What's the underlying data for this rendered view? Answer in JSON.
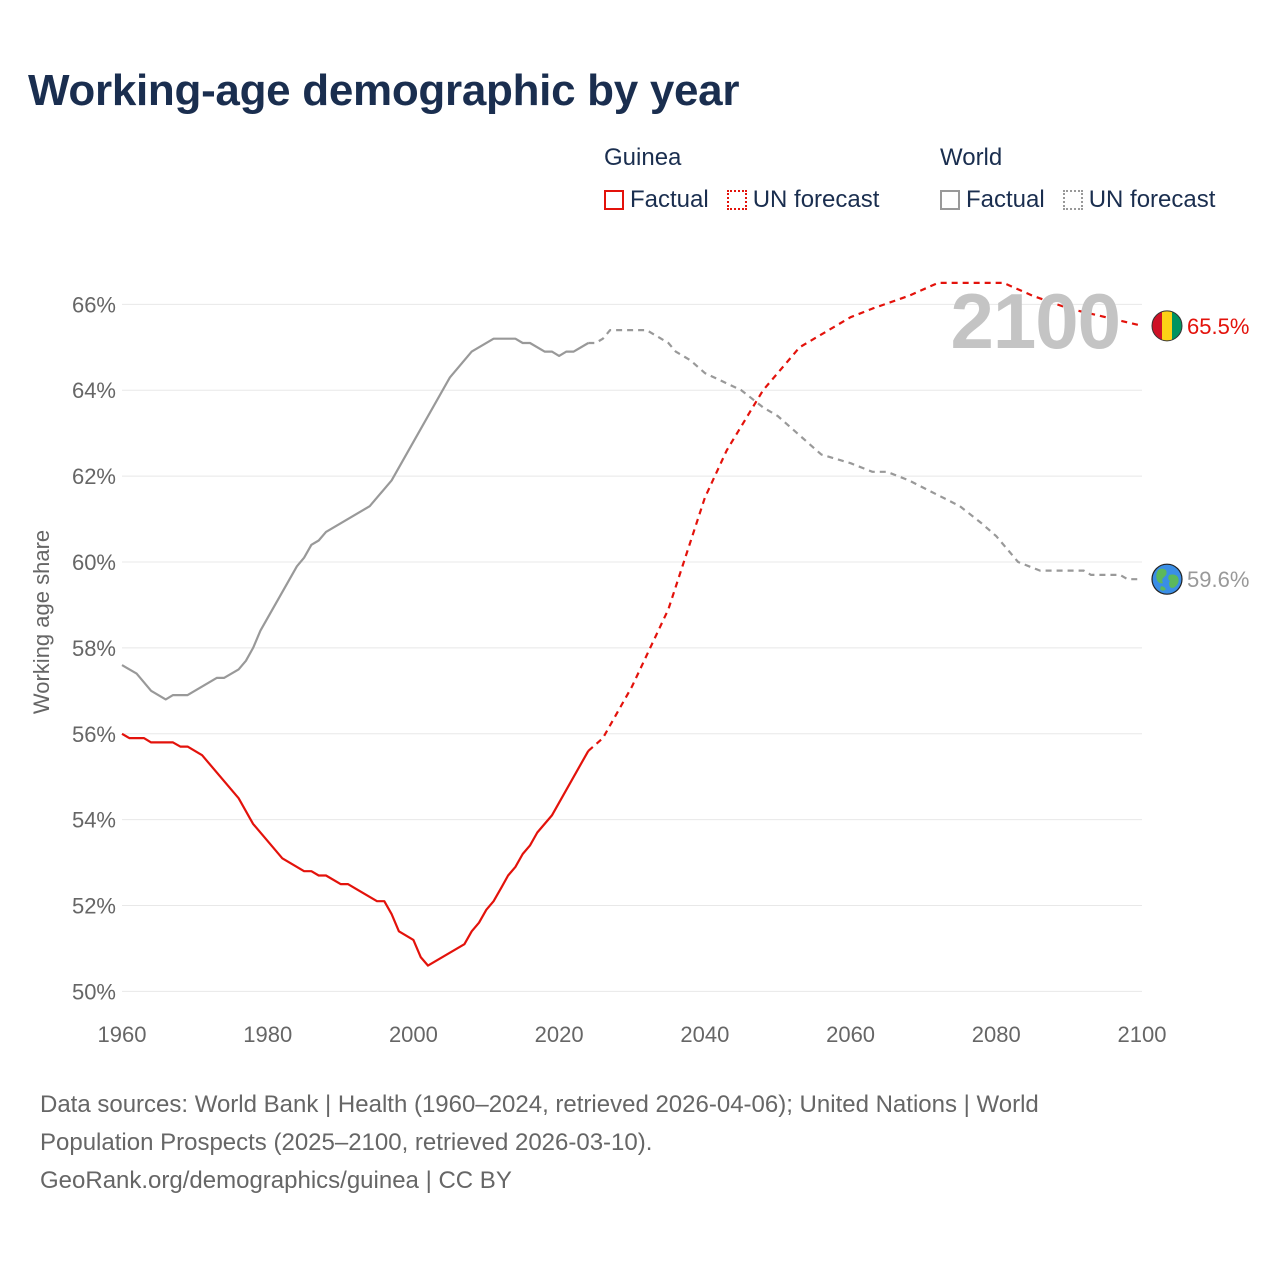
{
  "title": "Working-age demographic by year",
  "legend": {
    "groups": [
      {
        "name": "Guinea",
        "factual_label": "Factual",
        "forecast_label": "UN forecast"
      },
      {
        "name": "World",
        "factual_label": "Factual",
        "forecast_label": "UN forecast"
      }
    ]
  },
  "current_year_label": "2100",
  "footer": {
    "line1": "Data sources: World Bank | Health (1960–2024, retrieved 2026-04-06); United Nations | World",
    "line2": "Population Prospects (2025–2100, retrieved 2026-03-10).",
    "line3": "GeoRank.org/demographics/guinea | CC BY"
  },
  "colors": {
    "guinea": "#e3120b",
    "world": "#999999",
    "grid": "#e8e8e8",
    "title": "#1a2e4f",
    "axis_text": "#666666"
  },
  "chart_data": {
    "type": "line",
    "title": "Working-age demographic by year",
    "xlabel": "",
    "ylabel": "Working age share",
    "xlim": [
      1960,
      2100
    ],
    "ylim": [
      49.8,
      66.8
    ],
    "x_ticks": [
      1960,
      1980,
      2000,
      2020,
      2040,
      2060,
      2080,
      2100
    ],
    "y_ticks": [
      50,
      52,
      54,
      56,
      58,
      60,
      62,
      64,
      66
    ],
    "y_tick_labels": [
      "50%",
      "52%",
      "54%",
      "56%",
      "58%",
      "60%",
      "62%",
      "64%",
      "66%"
    ],
    "factual_end_year": 2024,
    "series": [
      {
        "name": "Guinea",
        "end_label": "65.5%",
        "factual": [
          [
            1960,
            56.0
          ],
          [
            1961,
            55.9
          ],
          [
            1963,
            55.9
          ],
          [
            1964,
            55.8
          ],
          [
            1967,
            55.8
          ],
          [
            1968,
            55.7
          ],
          [
            1969,
            55.7
          ],
          [
            1971,
            55.5
          ],
          [
            1976,
            54.5
          ],
          [
            1978,
            53.9
          ],
          [
            1982,
            53.1
          ],
          [
            1985,
            52.8
          ],
          [
            1986,
            52.8
          ],
          [
            1987,
            52.7
          ],
          [
            1988,
            52.7
          ],
          [
            1990,
            52.5
          ],
          [
            1991,
            52.5
          ],
          [
            1995,
            52.1
          ],
          [
            1996,
            52.1
          ],
          [
            1997,
            51.8
          ],
          [
            1998,
            51.4
          ],
          [
            2000,
            51.2
          ],
          [
            2001,
            50.8
          ],
          [
            2002,
            50.6
          ],
          [
            2007,
            51.1
          ],
          [
            2008,
            51.4
          ],
          [
            2009,
            51.6
          ],
          [
            2010,
            51.9
          ],
          [
            2011,
            52.1
          ],
          [
            2012,
            52.4
          ],
          [
            2013,
            52.7
          ],
          [
            2014,
            52.9
          ],
          [
            2015,
            53.2
          ],
          [
            2016,
            53.4
          ],
          [
            2017,
            53.7
          ],
          [
            2019,
            54.1
          ],
          [
            2024,
            55.6
          ]
        ],
        "forecast": [
          [
            2024,
            55.6
          ],
          [
            2026,
            55.9
          ],
          [
            2030,
            57.1
          ],
          [
            2035,
            58.9
          ],
          [
            2040,
            61.5
          ],
          [
            2043,
            62.6
          ],
          [
            2048,
            64.0
          ],
          [
            2053,
            65.0
          ],
          [
            2058,
            65.5
          ],
          [
            2060,
            65.7
          ],
          [
            2063,
            65.9
          ],
          [
            2068,
            66.2
          ],
          [
            2072,
            66.5
          ],
          [
            2081,
            66.5
          ],
          [
            2085,
            66.2
          ],
          [
            2090,
            65.9
          ],
          [
            2095,
            65.7
          ],
          [
            2100,
            65.5
          ]
        ]
      },
      {
        "name": "World",
        "end_label": "59.6%",
        "factual": [
          [
            1960,
            57.6
          ],
          [
            1962,
            57.4
          ],
          [
            1964,
            57.0
          ],
          [
            1966,
            56.8
          ],
          [
            1967,
            56.9
          ],
          [
            1969,
            56.9
          ],
          [
            1973,
            57.3
          ],
          [
            1974,
            57.3
          ],
          [
            1976,
            57.5
          ],
          [
            1977,
            57.7
          ],
          [
            1978,
            58.0
          ],
          [
            1979,
            58.4
          ],
          [
            1982,
            59.3
          ],
          [
            1984,
            59.9
          ],
          [
            1985,
            60.1
          ],
          [
            1986,
            60.4
          ],
          [
            1987,
            60.5
          ],
          [
            1988,
            60.7
          ],
          [
            1994,
            61.3
          ],
          [
            1997,
            61.9
          ],
          [
            2005,
            64.3
          ],
          [
            2008,
            64.9
          ],
          [
            2011,
            65.2
          ],
          [
            2014,
            65.2
          ],
          [
            2015,
            65.1
          ],
          [
            2016,
            65.1
          ],
          [
            2018,
            64.9
          ],
          [
            2019,
            64.9
          ],
          [
            2020,
            64.8
          ],
          [
            2021,
            64.9
          ],
          [
            2022,
            64.9
          ],
          [
            2024,
            65.1
          ]
        ],
        "forecast": [
          [
            2024,
            65.1
          ],
          [
            2025,
            65.1
          ],
          [
            2026,
            65.2
          ],
          [
            2027,
            65.4
          ],
          [
            2032,
            65.4
          ],
          [
            2033,
            65.3
          ],
          [
            2035,
            65.1
          ],
          [
            2036,
            64.9
          ],
          [
            2038,
            64.7
          ],
          [
            2040,
            64.4
          ],
          [
            2045,
            64.0
          ],
          [
            2048,
            63.6
          ],
          [
            2050,
            63.4
          ],
          [
            2052,
            63.1
          ],
          [
            2054,
            62.8
          ],
          [
            2056,
            62.5
          ],
          [
            2060,
            62.3
          ],
          [
            2063,
            62.1
          ],
          [
            2065,
            62.1
          ],
          [
            2068,
            61.9
          ],
          [
            2075,
            61.3
          ],
          [
            2078,
            60.9
          ],
          [
            2080,
            60.6
          ],
          [
            2083,
            60.0
          ],
          [
            2086,
            59.8
          ],
          [
            2092,
            59.8
          ],
          [
            2093,
            59.7
          ],
          [
            2097,
            59.7
          ],
          [
            2098,
            59.6
          ],
          [
            2100,
            59.6
          ]
        ]
      }
    ]
  }
}
